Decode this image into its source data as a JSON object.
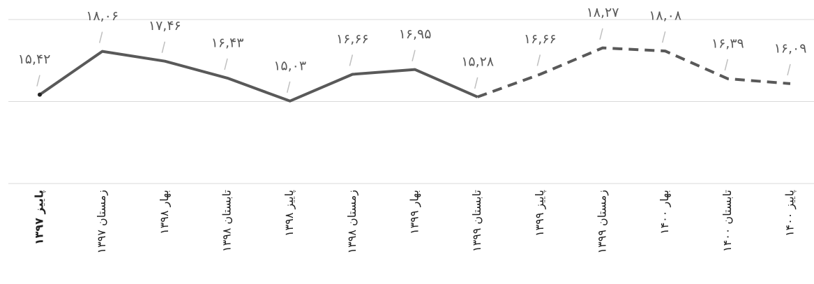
{
  "chart_data": {
    "type": "line",
    "categories": [
      "پاییز ۱۳۹۷",
      "زمستان ۱۳۹۷",
      "بهار ۱۳۹۸",
      "تابستان ۱۳۹۸",
      "پاییز ۱۳۹۸",
      "زمستان ۱۳۹۸",
      "بهار ۱۳۹۹",
      "تابستان ۱۳۹۹",
      "پاییز ۱۳۹۹",
      "زمستان ۱۳۹۹",
      "بهار ۱۴۰۰",
      "تابستان ۱۴۰۰",
      "پاییز ۱۴۰۰"
    ],
    "series": [
      {
        "color": "#595959",
        "values": [
          15.42,
          18.06,
          17.46,
          16.43,
          15.03,
          16.66,
          16.95,
          15.28,
          16.66,
          18.27,
          18.08,
          16.39,
          16.09
        ],
        "value_labels": [
          "۱۵,۴۲",
          "۱۸,۰۶",
          "۱۷,۴۶",
          "۱۶,۴۳",
          "۱۵,۰۳",
          "۱۶,۶۶",
          "۱۶,۹۵",
          "۱۵,۲۸",
          "۱۶,۶۶",
          "۱۸,۲۷",
          "۱۸,۰۸",
          "۱۶,۳۹",
          "۱۶,۰۹"
        ],
        "dashed_from": 7
      }
    ],
    "ylim": [
      10,
      20
    ],
    "yticks": [
      10,
      15,
      20
    ],
    "grid": true
  }
}
